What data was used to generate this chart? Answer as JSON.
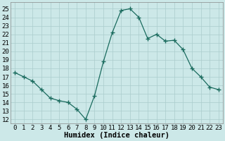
{
  "x": [
    0,
    1,
    2,
    3,
    4,
    5,
    6,
    7,
    8,
    9,
    10,
    11,
    12,
    13,
    14,
    15,
    16,
    17,
    18,
    19,
    20,
    21,
    22,
    23
  ],
  "y": [
    17.5,
    17.0,
    16.5,
    15.5,
    14.5,
    14.2,
    14.0,
    13.2,
    12.0,
    14.8,
    18.8,
    22.2,
    24.8,
    25.0,
    24.0,
    21.5,
    22.0,
    21.2,
    21.3,
    20.2,
    18.0,
    17.0,
    15.8,
    15.5
  ],
  "xlabel": "Humidex (Indice chaleur)",
  "xlim": [
    -0.5,
    23.5
  ],
  "ylim": [
    11.5,
    25.8
  ],
  "yticks": [
    12,
    13,
    14,
    15,
    16,
    17,
    18,
    19,
    20,
    21,
    22,
    23,
    24,
    25
  ],
  "xticks": [
    0,
    1,
    2,
    3,
    4,
    5,
    6,
    7,
    8,
    9,
    10,
    11,
    12,
    13,
    14,
    15,
    16,
    17,
    18,
    19,
    20,
    21,
    22,
    23
  ],
  "line_color": "#1a6b5e",
  "marker_color": "#1a6b5e",
  "bg_color": "#cce8e8",
  "grid_color": "#aacccc",
  "label_fontsize": 7.5,
  "tick_fontsize": 6.5
}
